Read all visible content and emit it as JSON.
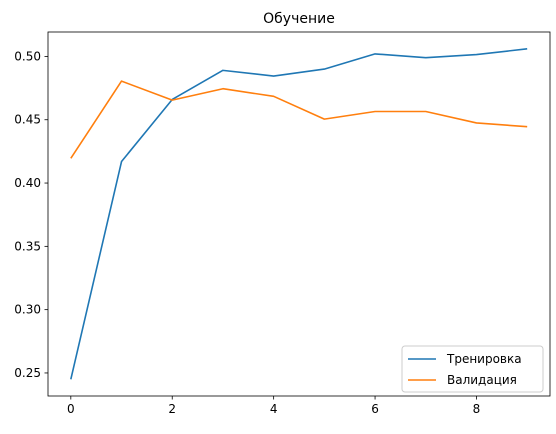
{
  "chart_data": {
    "type": "line",
    "title": "Обучение",
    "xlabel": "",
    "ylabel": "",
    "x": [
      0,
      1,
      2,
      3,
      4,
      5,
      6,
      7,
      8,
      9
    ],
    "xlim": [
      -0.45,
      9.45
    ],
    "ylim": [
      0.2318,
      0.5193
    ],
    "xticks": [
      0,
      2,
      4,
      6,
      8
    ],
    "xtick_labels": [
      "0",
      "2",
      "4",
      "6",
      "8"
    ],
    "yticks": [
      0.25,
      0.3,
      0.35,
      0.4,
      0.45,
      0.5
    ],
    "ytick_labels": [
      "0.25",
      "0.30",
      "0.35",
      "0.40",
      "0.45",
      "0.50"
    ],
    "grid": false,
    "legend_position": "lower-right",
    "series": [
      {
        "name": "Тренировка",
        "color": "#1f77b4",
        "values": [
          0.245,
          0.417,
          0.466,
          0.489,
          0.4845,
          0.49,
          0.502,
          0.499,
          0.5015,
          0.506
        ]
      },
      {
        "name": "Валидация",
        "color": "#ff7f0e",
        "values": [
          0.4195,
          0.4805,
          0.4655,
          0.4745,
          0.4685,
          0.4505,
          0.4565,
          0.4565,
          0.4475,
          0.4445
        ]
      }
    ]
  }
}
